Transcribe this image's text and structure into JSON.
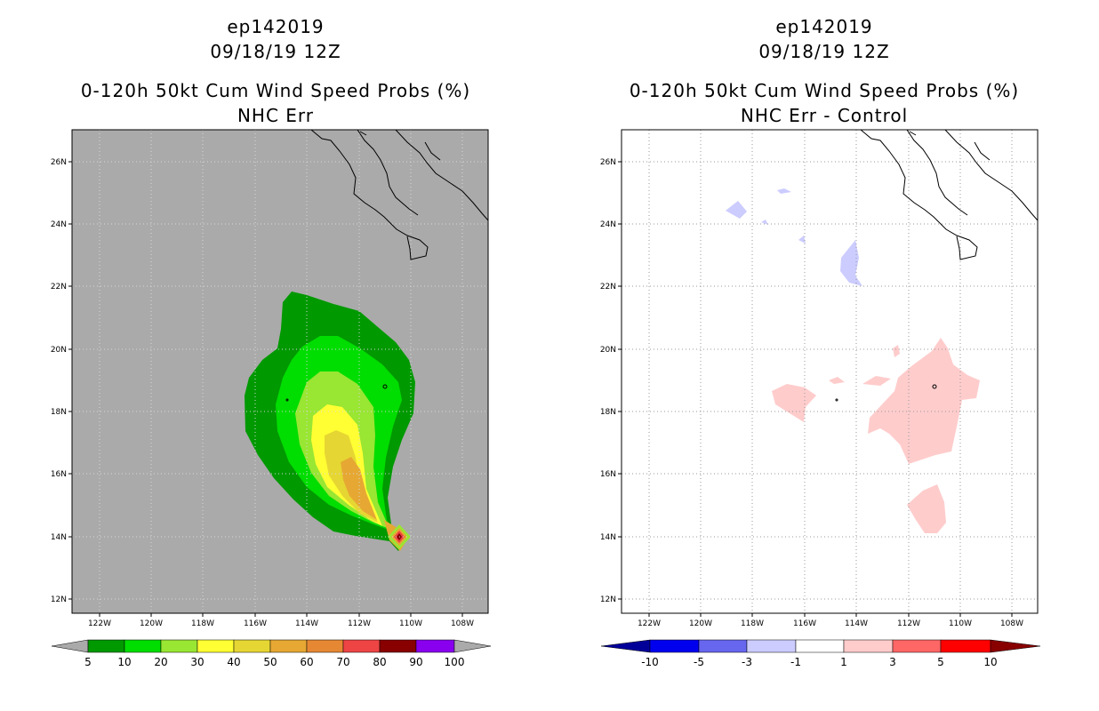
{
  "left_panel": {
    "storm_id": "ep142019",
    "datetime": "09/18/19 12Z",
    "product": "0-120h 50kt Cum Wind Speed Probs (%)",
    "subtitle": "NHC Err",
    "lat_labels": [
      "26N",
      "24N",
      "22N",
      "20N",
      "18N",
      "16N",
      "14N",
      "12N"
    ],
    "lon_labels": [
      "122W",
      "120W",
      "118W",
      "116W",
      "114W",
      "112W",
      "110W",
      "108W"
    ],
    "colorbar": {
      "labels": [
        "5",
        "10",
        "20",
        "30",
        "40",
        "50",
        "60",
        "70",
        "80",
        "90",
        "100"
      ],
      "colors": [
        "#009900",
        "#00dd00",
        "#99e633",
        "#ffff33",
        "#e6d633",
        "#e6a833",
        "#e68833",
        "#ee4444",
        "#880000",
        "#8800ee"
      ],
      "end_color": "#aaaaaa"
    },
    "land_sea_color": "#aaaaaa"
  },
  "right_panel": {
    "storm_id": "ep142019",
    "datetime": "09/18/19 12Z",
    "product": "0-120h 50kt Cum Wind Speed Probs (%)",
    "subtitle": "NHC Err - Control",
    "lat_labels": [
      "26N",
      "24N",
      "22N",
      "20N",
      "18N",
      "16N",
      "14N",
      "12N"
    ],
    "lon_labels": [
      "122W",
      "120W",
      "118W",
      "116W",
      "114W",
      "112W",
      "110W",
      "108W"
    ],
    "colorbar": {
      "labels": [
        "-10",
        "-5",
        "-3",
        "-1",
        "1",
        "3",
        "5",
        "10"
      ],
      "colors": [
        "#000099",
        "#0000ee",
        "#6666ee",
        "#ccccff",
        "#ffffff",
        "#ffcccc",
        "#ff6666",
        "#ff0000",
        "#880000"
      ]
    }
  }
}
